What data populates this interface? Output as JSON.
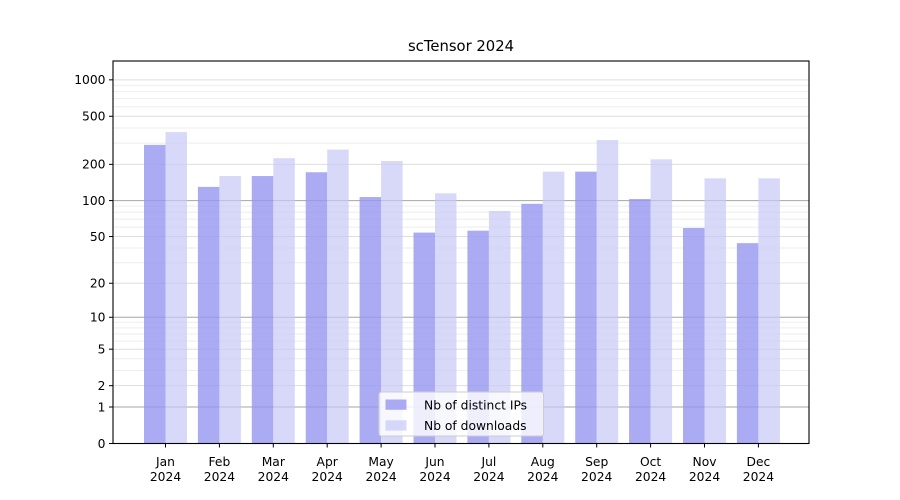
{
  "chart_data": {
    "type": "bar",
    "title": "scTensor 2024",
    "categories": [
      "Jan 2024",
      "Feb 2024",
      "Mar 2024",
      "Apr 2024",
      "May 2024",
      "Jun 2024",
      "Jul 2024",
      "Aug 2024",
      "Sep 2024",
      "Oct 2024",
      "Nov 2024",
      "Dec 2024"
    ],
    "series": [
      {
        "name": "Nb of distinct IPs",
        "values": [
          290,
          130,
          160,
          172,
          107,
          54,
          56,
          94,
          174,
          103,
          59,
          44
        ],
        "color": "#9696f0",
        "alpha": 0.8
      },
      {
        "name": "Nb of downloads",
        "values": [
          370,
          160,
          225,
          265,
          213,
          115,
          82,
          174,
          318,
          220,
          153,
          153
        ],
        "color": "#c8c8f5",
        "alpha": 0.7
      }
    ],
    "yscale": "log(value+1)",
    "yticks": [
      0,
      1,
      2,
      5,
      10,
      20,
      50,
      100,
      200,
      500,
      1000
    ],
    "ylim": [
      0,
      1400
    ],
    "xlabel": "",
    "ylabel": "",
    "grid": true,
    "legend_position": "lower center"
  },
  "colors": {
    "background": "#ffffff",
    "axis": "#000000",
    "gridline_major": "#a6a6a6",
    "gridline_minor": "#dedede",
    "gridline_faint": "#eeeeee",
    "legend_border": "#cccccc",
    "legend_background": "#ffffff"
  }
}
